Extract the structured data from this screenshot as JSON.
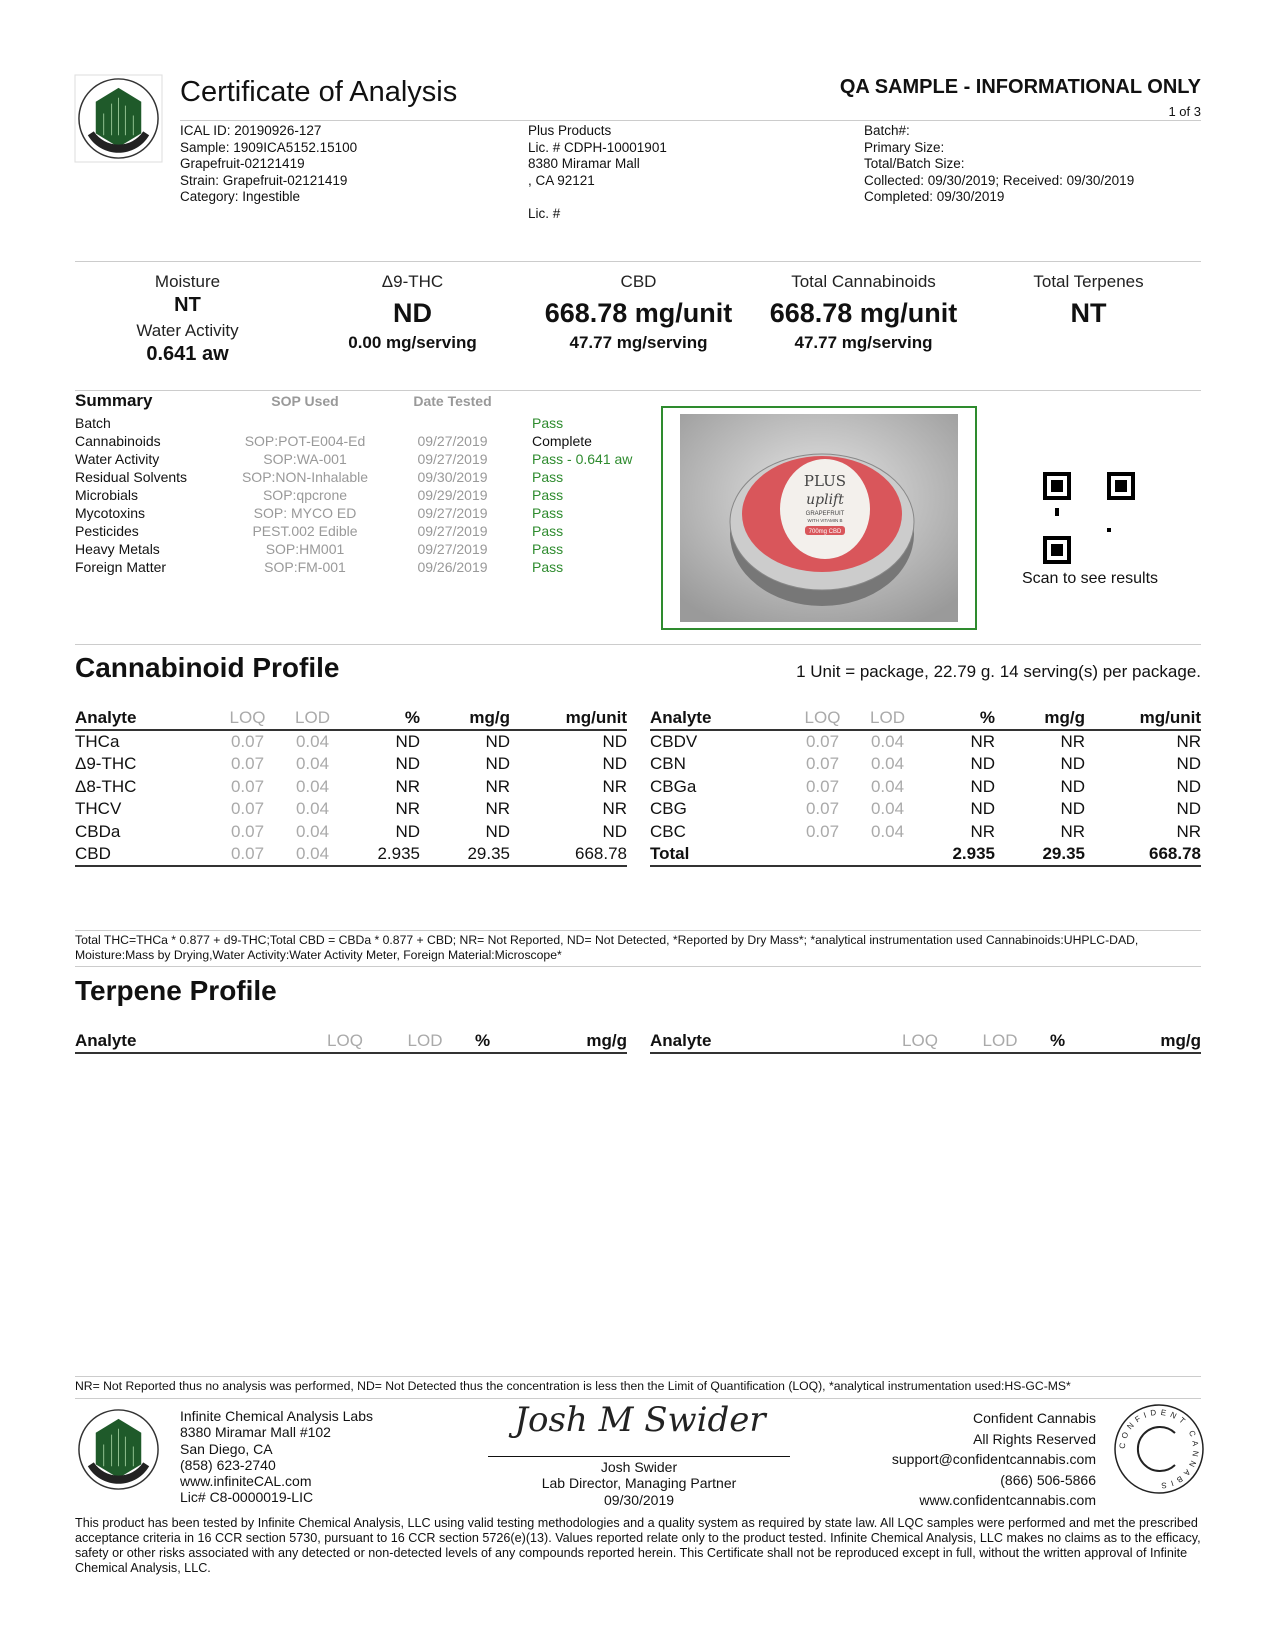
{
  "header": {
    "title": "Certificate of Analysis",
    "notice": "QA SAMPLE - INFORMATIONAL ONLY",
    "page": "1 of 3",
    "sample_info": [
      "ICAL ID: 20190926-127",
      "Sample: 1909ICA5152.15100",
      "Grapefruit-02121419",
      "Strain: Grapefruit-02121419",
      "Category: Ingestible"
    ],
    "client_info": [
      "Plus Products",
      "Lic. # CDPH-10001901",
      "8380 Miramar Mall",
      ", CA 92121",
      "",
      "Lic. #"
    ],
    "batch_info": [
      "Batch#:",
      "Primary Size:",
      "Total/Batch Size:",
      "Collected: 09/30/2019; Received: 09/30/2019",
      "Completed: 09/30/2019"
    ]
  },
  "metrics": {
    "moisture_label": "Moisture",
    "moisture_value": "NT",
    "water_label": "Water Activity",
    "water_value": "0.641 aw",
    "thc_label": "Δ9-THC",
    "thc_value": "ND",
    "thc_serving": "0.00 mg/serving",
    "cbd_label": "CBD",
    "cbd_value": "668.78 mg/unit",
    "cbd_serving": "47.77 mg/serving",
    "tc_label": "Total Cannabinoids",
    "tc_value": "668.78 mg/unit",
    "tc_serving": "47.77 mg/serving",
    "tt_label": "Total Terpenes",
    "tt_value": "NT"
  },
  "summary": {
    "headers": [
      "Summary",
      "SOP Used",
      "Date Tested"
    ],
    "rows": [
      {
        "name": "Batch",
        "sop": "",
        "date": "",
        "result": "Pass"
      },
      {
        "name": "Cannabinoids",
        "sop": "SOP:POT-E004-Ed",
        "date": "09/27/2019",
        "result": "Complete"
      },
      {
        "name": "Water Activity",
        "sop": "SOP:WA-001",
        "date": "09/27/2019",
        "result": "Pass - 0.641 aw"
      },
      {
        "name": "Residual Solvents",
        "sop": "SOP:NON-Inhalable",
        "date": "09/30/2019",
        "result": "Pass"
      },
      {
        "name": "Microbials",
        "sop": "SOP:qpcrone",
        "date": "09/29/2019",
        "result": "Pass"
      },
      {
        "name": "Mycotoxins",
        "sop": "SOP: MYCO ED",
        "date": "09/27/2019",
        "result": "Pass"
      },
      {
        "name": "Pesticides",
        "sop": "PEST.002 Edible",
        "date": "09/27/2019",
        "result": "Pass"
      },
      {
        "name": "Heavy Metals",
        "sop": "SOP:HM001",
        "date": "09/27/2019",
        "result": "Pass"
      },
      {
        "name": "Foreign Matter",
        "sop": "SOP:FM-001",
        "date": "09/26/2019",
        "result": "Pass"
      }
    ],
    "product_label": {
      "brand": "PLUS",
      "name": "uplift",
      "flavor": "GRAPEFRUIT",
      "sub": "WITH VITAMIN B",
      "dose": "700mg CBD"
    },
    "qr_caption": "Scan to see results"
  },
  "cannabinoid": {
    "title": "Cannabinoid Profile",
    "unit_note": "1 Unit = package, 22.79 g.  14 serving(s) per package.",
    "columns": [
      "Analyte",
      "LOQ",
      "LOD",
      "%",
      "mg/g",
      "mg/unit"
    ],
    "left": [
      [
        "THCa",
        "0.07",
        "0.04",
        "ND",
        "ND",
        "ND"
      ],
      [
        "Δ9-THC",
        "0.07",
        "0.04",
        "ND",
        "ND",
        "ND"
      ],
      [
        "Δ8-THC",
        "0.07",
        "0.04",
        "NR",
        "NR",
        "NR"
      ],
      [
        "THCV",
        "0.07",
        "0.04",
        "NR",
        "NR",
        "NR"
      ],
      [
        "CBDa",
        "0.07",
        "0.04",
        "ND",
        "ND",
        "ND"
      ],
      [
        "CBD",
        "0.07",
        "0.04",
        "2.935",
        "29.35",
        "668.78"
      ]
    ],
    "right": [
      [
        "CBDV",
        "0.07",
        "0.04",
        "NR",
        "NR",
        "NR"
      ],
      [
        "CBN",
        "0.07",
        "0.04",
        "ND",
        "ND",
        "ND"
      ],
      [
        "CBGa",
        "0.07",
        "0.04",
        "ND",
        "ND",
        "ND"
      ],
      [
        "CBG",
        "0.07",
        "0.04",
        "ND",
        "ND",
        "ND"
      ],
      [
        "CBC",
        "0.07",
        "0.04",
        "NR",
        "NR",
        "NR"
      ],
      [
        "Total",
        "",
        "",
        "2.935",
        "29.35",
        "668.78"
      ]
    ],
    "footnote": "Total THC=THCa * 0.877 + d9-THC;Total CBD = CBDa * 0.877 + CBD; NR= Not Reported, ND= Not Detected, *Reported by Dry Mass*;  *analytical instrumentation used Cannabinoids:UHPLC-DAD, Moisture:Mass by Drying,Water Activity:Water Activity Meter, Foreign Material:Microscope*"
  },
  "terpene": {
    "title": "Terpene Profile",
    "columns": [
      "Analyte",
      "LOQ",
      "LOD",
      "%",
      "mg/g"
    ],
    "footnote": "NR= Not Reported thus no analysis was performed, ND= Not Detected thus the concentration is less then the Limit of Quantification (LOQ), *analytical instrumentation used:HS-GC-MS*"
  },
  "footer": {
    "lab": [
      "Infinite Chemical Analysis Labs",
      "8380 Miramar Mall #102",
      "San Diego, CA",
      "(858) 623-2740",
      "www.infiniteCAL.com",
      "Lic# C8-0000019-LIC"
    ],
    "signature": "Josh M Swider",
    "signer": [
      "Josh Swider",
      "Lab Director, Managing Partner",
      "09/30/2019"
    ],
    "cc": [
      "Confident Cannabis",
      "All Rights Reserved",
      "support@confidentcannabis.com",
      "(866) 506-5866",
      "www.confidentcannabis.com"
    ],
    "cc_logo_text": "CONFIDENT CANNABIS",
    "logo_text": "INFINITE CHEMICAL ANALYSIS LABS",
    "disclaimer": "This product has been tested by Infinite Chemical Analysis, LLC using valid testing methodologies and a quality system as required by state law. All LQC samples were performed and met the prescribed acceptance criteria in 16 CCR section 5730, pursuant to 16 CCR section 5726(e)(13). Values reported relate only to the product tested. Infinite Chemical Analysis, LLC  makes no claims as to the efficacy, safety or other risks associated with any detected or non-detected levels of any compounds reported herein. This Certificate shall not be reproduced except in full, without the written approval of Infinite Chemical Analysis, LLC."
  },
  "colors": {
    "pass": "#2e8b2e",
    "logo_green": "#1f5a2a",
    "image_border": "#2e8b2e"
  }
}
